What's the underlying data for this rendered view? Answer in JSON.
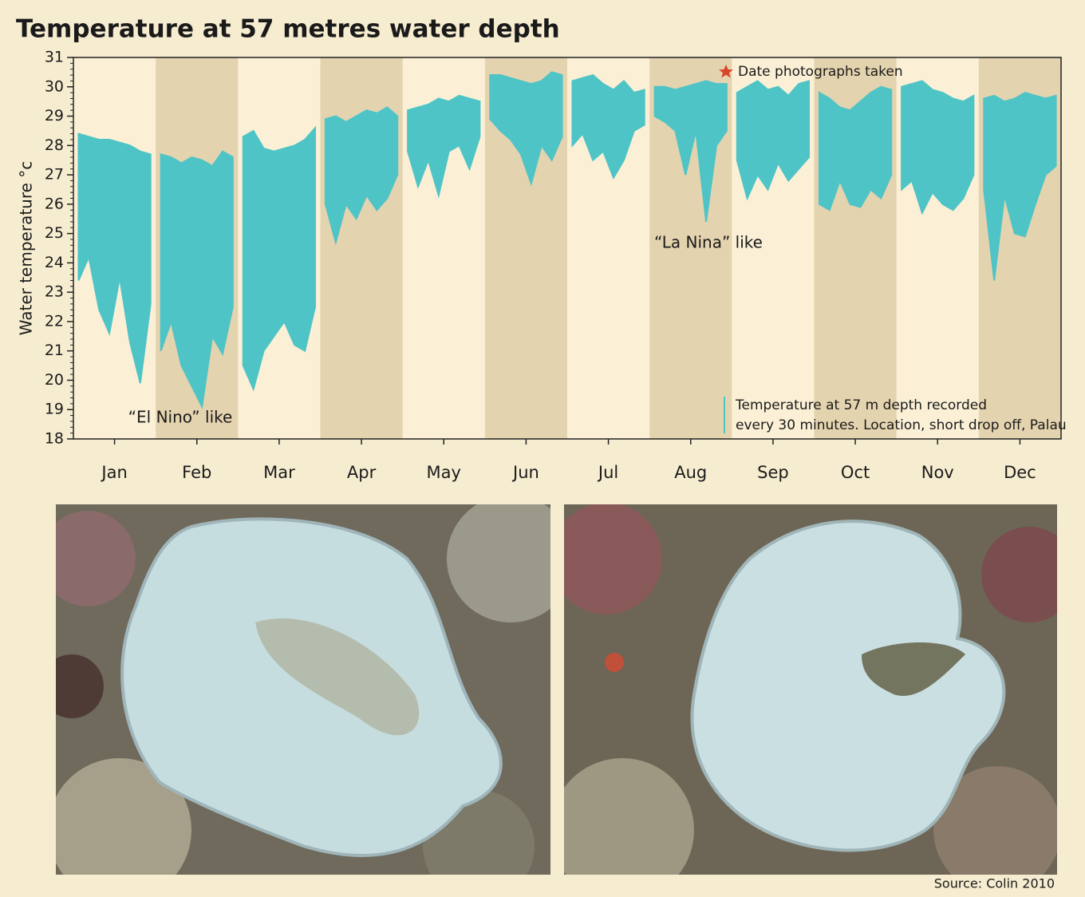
{
  "chart_data": {
    "type": "range",
    "title": "Temperature at 57 metres water depth",
    "y_label": "Water temperature °c",
    "categories": [
      "Jan",
      "Feb",
      "Mar",
      "Apr",
      "May",
      "Jun",
      "Jul",
      "Aug",
      "Sep",
      "Oct",
      "Nov",
      "Dec"
    ],
    "highs": [
      [
        28.4,
        28.3,
        28.2,
        28.2,
        28.1,
        28.0,
        27.8,
        27.7
      ],
      [
        27.7,
        27.6,
        27.4,
        27.6,
        27.5,
        27.3,
        27.8,
        27.6
      ],
      [
        28.3,
        28.5,
        27.9,
        27.8,
        27.9,
        28.0,
        28.2,
        28.6
      ],
      [
        28.9,
        29.0,
        28.8,
        29.0,
        29.2,
        29.1,
        29.3,
        29.0
      ],
      [
        29.2,
        29.3,
        29.4,
        29.6,
        29.5,
        29.7,
        29.6,
        29.5
      ],
      [
        30.4,
        30.4,
        30.3,
        30.2,
        30.1,
        30.2,
        30.5,
        30.4
      ],
      [
        30.2,
        30.3,
        30.4,
        30.1,
        29.9,
        30.2,
        29.8,
        29.9
      ],
      [
        30.0,
        30.0,
        29.9,
        30.0,
        30.1,
        30.2,
        30.1,
        30.1
      ],
      [
        29.8,
        30.0,
        30.2,
        29.9,
        30.0,
        29.7,
        30.1,
        30.2
      ],
      [
        29.8,
        29.6,
        29.3,
        29.2,
        29.5,
        29.8,
        30.0,
        29.9
      ],
      [
        30.0,
        30.1,
        30.2,
        29.9,
        29.8,
        29.6,
        29.5,
        29.7
      ],
      [
        29.6,
        29.7,
        29.5,
        29.6,
        29.8,
        29.7,
        29.6,
        29.7
      ]
    ],
    "lows": [
      [
        23.4,
        24.2,
        22.4,
        21.6,
        23.5,
        21.3,
        19.9,
        22.6
      ],
      [
        21.0,
        22.0,
        20.5,
        19.8,
        19.1,
        21.5,
        20.9,
        22.5
      ],
      [
        20.5,
        19.7,
        21.0,
        21.5,
        22.0,
        21.2,
        21.0,
        22.5
      ],
      [
        26.0,
        24.7,
        26.0,
        25.5,
        26.3,
        25.8,
        26.2,
        27.0
      ],
      [
        27.8,
        26.6,
        27.5,
        26.3,
        27.8,
        28.0,
        27.2,
        28.3
      ],
      [
        28.9,
        28.5,
        28.2,
        27.7,
        26.7,
        28.0,
        27.5,
        28.3
      ],
      [
        28.0,
        28.4,
        27.5,
        27.8,
        26.9,
        27.5,
        28.5,
        28.7
      ],
      [
        29.0,
        28.8,
        28.5,
        27.0,
        28.5,
        25.4,
        28.0,
        28.5
      ],
      [
        27.5,
        26.2,
        27.0,
        26.5,
        27.4,
        26.8,
        27.2,
        27.6
      ],
      [
        26.0,
        25.8,
        26.8,
        26.0,
        25.9,
        26.5,
        26.2,
        27.0
      ],
      [
        26.5,
        26.8,
        25.7,
        26.4,
        26.0,
        25.8,
        26.2,
        27.0
      ],
      [
        26.5,
        23.4,
        26.3,
        25.0,
        24.9,
        26.0,
        27.0,
        27.3
      ]
    ],
    "color": "#4fc4c6",
    "ylim": [
      18,
      31
    ],
    "yticks": [
      18,
      19,
      20,
      21,
      22,
      23,
      24,
      25,
      26,
      27,
      28,
      29,
      30,
      31
    ],
    "annotations": [
      "“El Nino” like",
      "“La Nina” like"
    ],
    "marker_label": "Date photographs taken",
    "legend": [
      "Temperature at 57 m depth recorded",
      "every 30 minutes. Location, short drop off, Palau"
    ],
    "source": "Source: Colin 2010"
  }
}
